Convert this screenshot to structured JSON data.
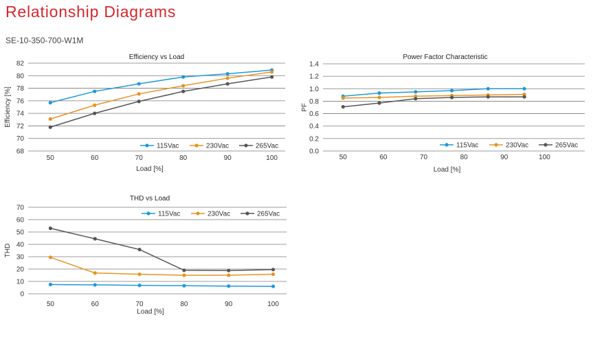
{
  "page": {
    "title": "Relationship Diagrams",
    "model": "SE-10-350-700-W1M"
  },
  "colors": {
    "title": "#d6262b",
    "s115": "#1e9ad6",
    "s230": "#e89323",
    "s265": "#555555",
    "grid": "#7a7a7a"
  },
  "chart_data": [
    {
      "type": "line",
      "title": "Efficiency vs Load",
      "xlabel": "Load [%]",
      "ylabel": "Efficiency [%]",
      "x_ticks": [
        "50",
        "60",
        "70",
        "80",
        "90",
        "100"
      ],
      "y_ticks": [
        "68",
        "70",
        "72",
        "74",
        "76",
        "78",
        "80",
        "82"
      ],
      "ylim": [
        68,
        82
      ],
      "grid": "horizontal",
      "legend_position": "bottom-right",
      "series": [
        {
          "name": "115Vac",
          "color": "#1e9ad6",
          "x": [
            50,
            60,
            70,
            80,
            90,
            100
          ],
          "values": [
            75.7,
            77.5,
            78.7,
            79.8,
            80.3,
            80.9
          ]
        },
        {
          "name": "230Vac",
          "color": "#e89323",
          "x": [
            50,
            60,
            70,
            80,
            90,
            100
          ],
          "values": [
            73.1,
            75.3,
            77.1,
            78.4,
            79.6,
            80.6
          ]
        },
        {
          "name": "265Vac",
          "color": "#555555",
          "x": [
            50,
            60,
            70,
            80,
            90,
            100
          ],
          "values": [
            71.8,
            74.0,
            75.9,
            77.5,
            78.7,
            79.8
          ]
        }
      ]
    },
    {
      "type": "line",
      "title": "Power Factor Characteristic",
      "xlabel": "Load [%]",
      "ylabel": "PF",
      "x_ticks": [
        "50",
        "60",
        "70",
        "80",
        "90",
        "100"
      ],
      "y_ticks": [
        "0.0",
        "0.2",
        "0.4",
        "0.6",
        "0.8",
        "1.0",
        "1.2",
        "1.4"
      ],
      "ylim": [
        0,
        1.4
      ],
      "grid": "horizontal",
      "legend_position": "bottom-right",
      "series": [
        {
          "name": "115Vac",
          "color": "#1e9ad6",
          "x": [
            50,
            59,
            68,
            77,
            86,
            95
          ],
          "values": [
            0.88,
            0.93,
            0.95,
            0.97,
            1.0,
            1.0
          ]
        },
        {
          "name": "230Vac",
          "color": "#e89323",
          "x": [
            50,
            59,
            68,
            77,
            86,
            95
          ],
          "values": [
            0.85,
            0.86,
            0.88,
            0.89,
            0.9,
            0.91
          ]
        },
        {
          "name": "265Vac",
          "color": "#555555",
          "x": [
            50,
            59,
            68,
            77,
            86,
            95
          ],
          "values": [
            0.71,
            0.77,
            0.84,
            0.86,
            0.87,
            0.87
          ]
        }
      ]
    },
    {
      "type": "line",
      "title": "THD vs Load",
      "xlabel": "Load [%]",
      "ylabel": "THD",
      "x_ticks": [
        "50",
        "60",
        "70",
        "80",
        "90",
        "100"
      ],
      "y_ticks": [
        "0",
        "10",
        "20",
        "30",
        "40",
        "50",
        "60",
        "70"
      ],
      "ylim": [
        0,
        70
      ],
      "grid": "horizontal",
      "legend_position": "top-right",
      "series": [
        {
          "name": "115Vac",
          "color": "#1e9ad6",
          "x": [
            50,
            60,
            70,
            80,
            90,
            100
          ],
          "values": [
            7.5,
            7.2,
            6.8,
            6.5,
            6.2,
            6.0
          ]
        },
        {
          "name": "230Vac",
          "color": "#e89323",
          "x": [
            50,
            60,
            70,
            80,
            90,
            100
          ],
          "values": [
            29.5,
            16.8,
            15.8,
            15.0,
            15.0,
            15.8
          ]
        },
        {
          "name": "265Vac",
          "color": "#555555",
          "x": [
            50,
            60,
            70,
            80,
            90,
            100
          ],
          "values": [
            53.0,
            44.5,
            35.8,
            19.0,
            18.8,
            19.6
          ]
        }
      ]
    }
  ]
}
